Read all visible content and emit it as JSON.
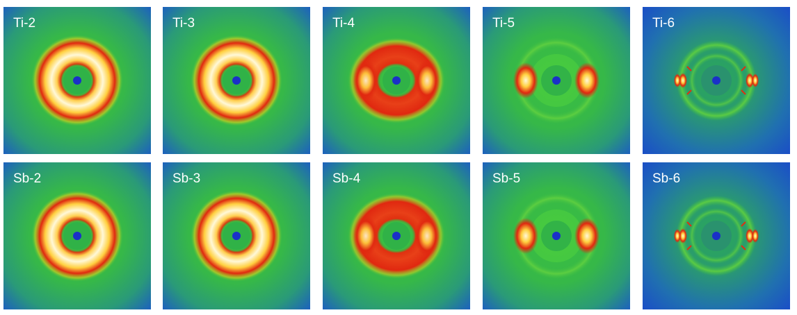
{
  "panels": [
    {
      "label": "Ti-2"
    },
    {
      "label": "Ti-3"
    },
    {
      "label": "Ti-4"
    },
    {
      "label": "Ti-5"
    },
    {
      "label": "Ti-6"
    },
    {
      "label": "Sb-2"
    },
    {
      "label": "Sb-3"
    },
    {
      "label": "Sb-4"
    },
    {
      "label": "Sb-5"
    },
    {
      "label": "Sb-6"
    }
  ]
}
